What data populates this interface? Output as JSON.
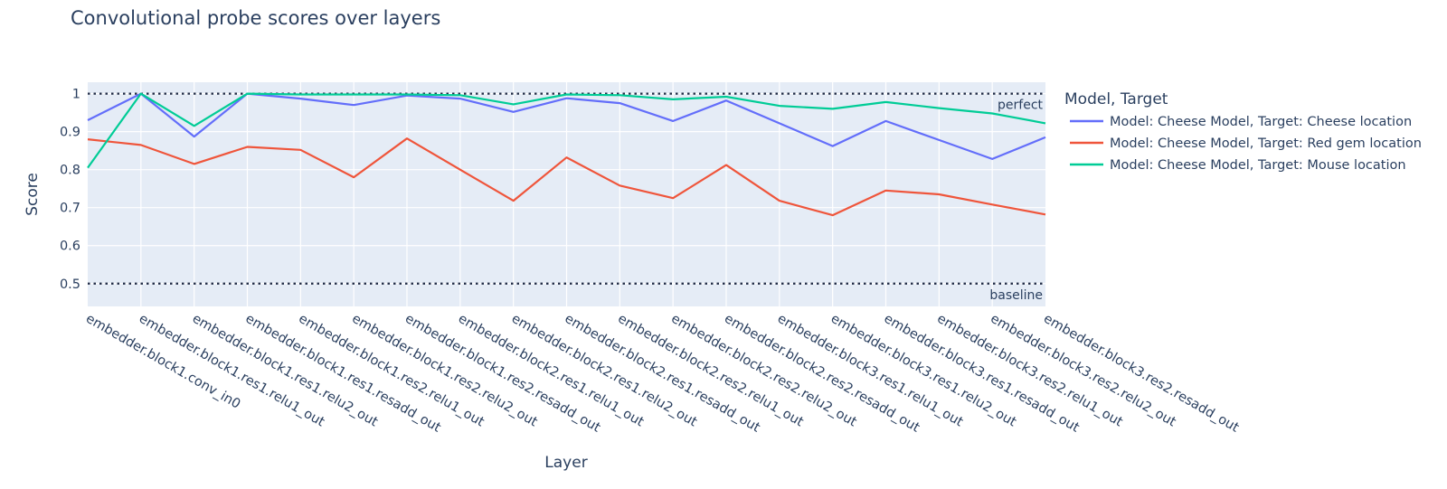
{
  "chart_data": {
    "type": "line",
    "title": "Convolutional probe scores over layers",
    "xlabel": "Layer",
    "ylabel": "Score",
    "ylim": [
      0.44,
      1.03
    ],
    "yticks": [
      0.5,
      0.6,
      0.7,
      0.8,
      0.9,
      1
    ],
    "ytick_labels": [
      "0.5",
      "0.6",
      "0.7",
      "0.8",
      "0.9",
      "1"
    ],
    "grid": true,
    "legend_title": "Model, Target",
    "legend_position": "right",
    "categories": [
      "embedder.block1.conv_in0",
      "embedder.block1.res1.relu1_out",
      "embedder.block1.res1.relu2_out",
      "embedder.block1.res1.resadd_out",
      "embedder.block1.res2.relu1_out",
      "embedder.block1.res2.relu2_out",
      "embedder.block1.res2.resadd_out",
      "embedder.block2.res1.relu1_out",
      "embedder.block2.res1.relu2_out",
      "embedder.block2.res1.resadd_out",
      "embedder.block2.res2.relu1_out",
      "embedder.block2.res2.relu2_out",
      "embedder.block2.res2.resadd_out",
      "embedder.block3.res1.relu1_out",
      "embedder.block3.res1.relu2_out",
      "embedder.block3.res1.resadd_out",
      "embedder.block3.res2.relu1_out",
      "embedder.block3.res2.relu2_out",
      "embedder.block3.res2.resadd_out"
    ],
    "reference_lines": [
      {
        "value": 1,
        "label": "perfect"
      },
      {
        "value": 0.5,
        "label": "baseline"
      }
    ],
    "series": [
      {
        "name": "Model: Cheese Model, Target: Cheese location",
        "color": "#636efa",
        "values": [
          0.93,
          1.0,
          0.887,
          1.0,
          0.987,
          0.97,
          0.995,
          0.987,
          0.952,
          0.988,
          0.975,
          0.928,
          0.982,
          0.922,
          0.862,
          0.928,
          0.878,
          0.828,
          0.885
        ]
      },
      {
        "name": "Model: Cheese Model, Target: Red gem location",
        "color": "#ef553b",
        "values": [
          0.88,
          0.865,
          0.815,
          0.86,
          0.852,
          0.78,
          0.882,
          0.8,
          0.718,
          0.832,
          0.758,
          0.725,
          0.812,
          0.718,
          0.68,
          0.745,
          0.735,
          0.708,
          0.682
        ]
      },
      {
        "name": "Model: Cheese Model, Target: Mouse location",
        "color": "#00cc96",
        "values": [
          0.805,
          1.0,
          0.915,
          1.0,
          0.998,
          0.998,
          0.998,
          0.996,
          0.972,
          0.998,
          0.996,
          0.985,
          0.992,
          0.968,
          0.96,
          0.978,
          0.962,
          0.948,
          0.922
        ]
      }
    ]
  }
}
